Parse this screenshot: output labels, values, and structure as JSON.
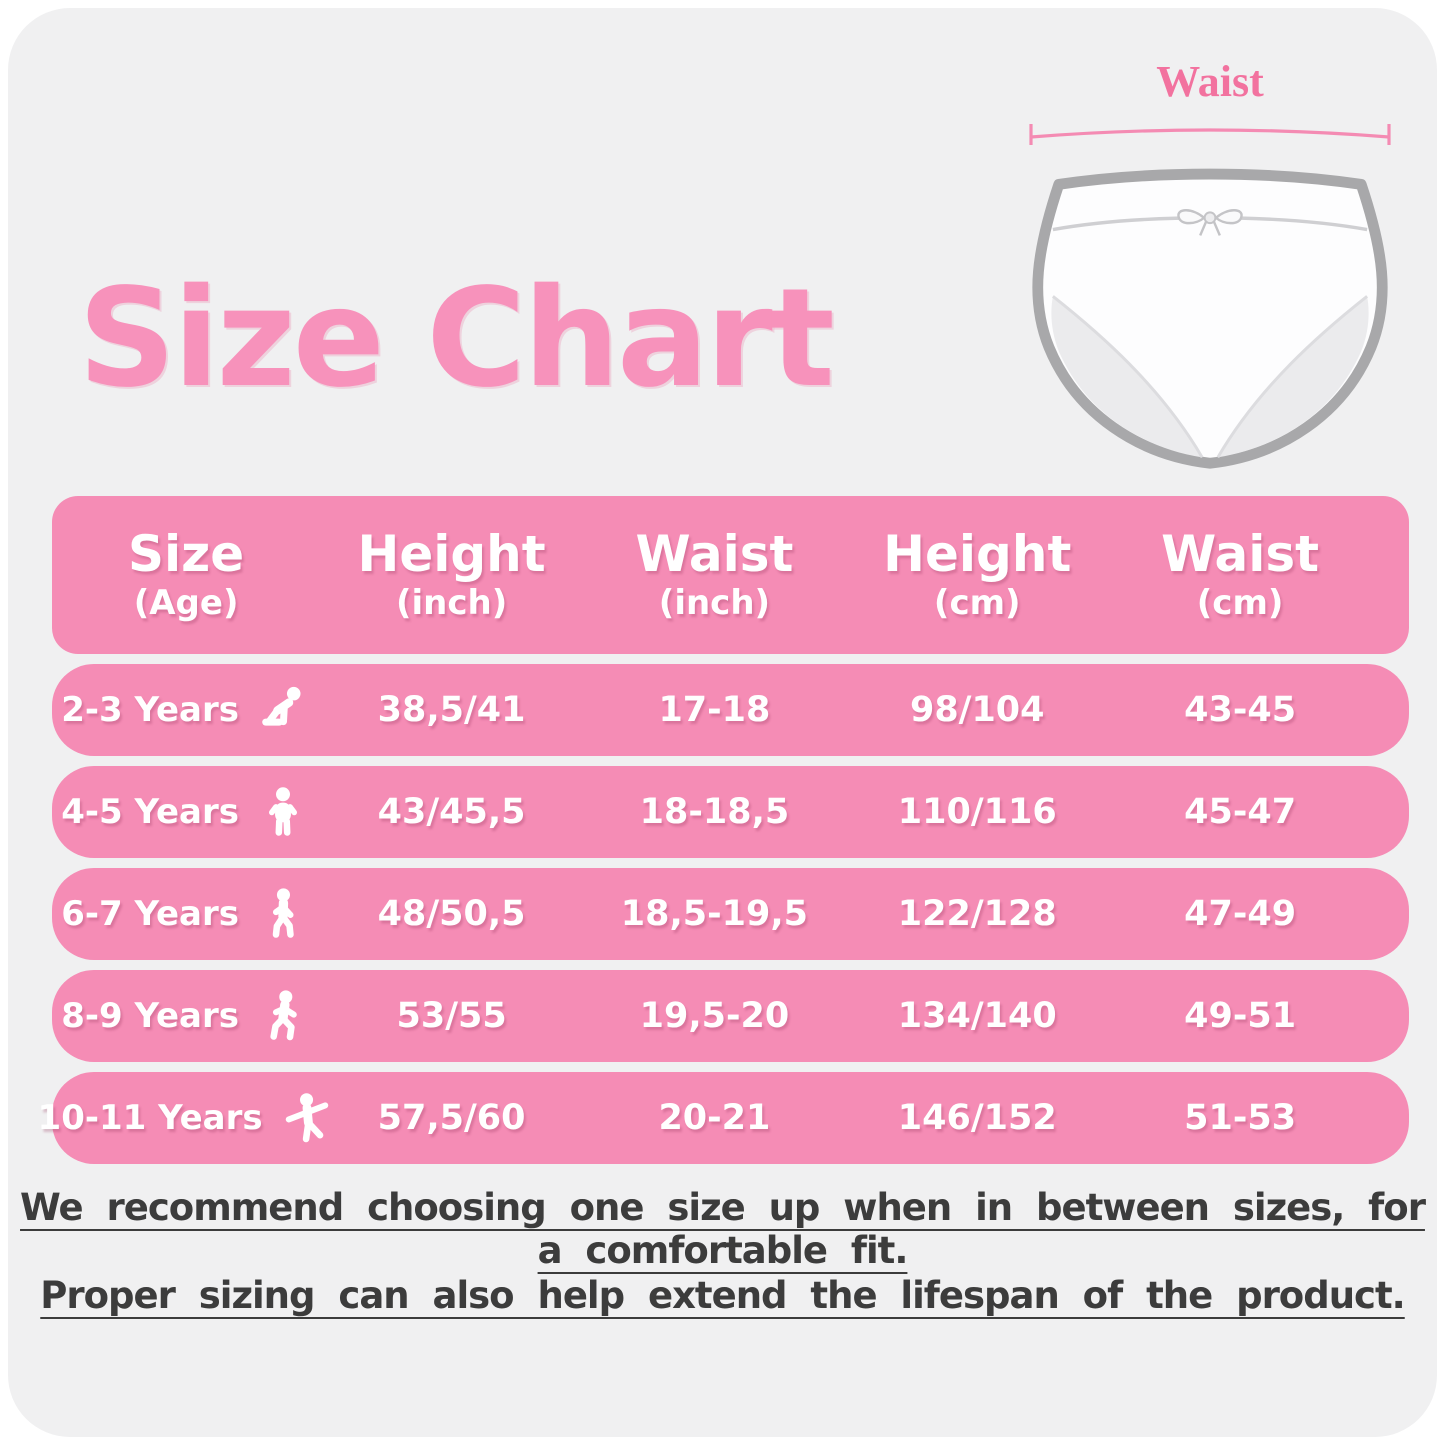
{
  "page": {
    "title": "Size Chart"
  },
  "diagram": {
    "label": "Waist",
    "illustration": "underwear-briefs-icon"
  },
  "colors": {
    "accent_pink": "#f58cb5",
    "title_pink": "#f792bb",
    "waist_label_pink": "#f2729f",
    "card_bg": "#f0f0f1",
    "note_text": "#3c3c3c",
    "briefs_outline": "#a8a8aa"
  },
  "table": {
    "headers": [
      {
        "label": "Size",
        "unit": "(Age)"
      },
      {
        "label": "Height",
        "unit": "(inch)"
      },
      {
        "label": "Waist",
        "unit": "(inch)"
      },
      {
        "label": "Height",
        "unit": "(cm)"
      },
      {
        "label": "Waist",
        "unit": "(cm)"
      }
    ],
    "rows": [
      {
        "age": "2-3 Years",
        "icon": "baby-crawling-icon",
        "height_inch": "38,5/41",
        "waist_inch": "17-18",
        "height_cm": "98/104",
        "waist_cm": "43-45"
      },
      {
        "age": "4-5 Years",
        "icon": "toddler-standing-icon",
        "height_inch": "43/45,5",
        "waist_inch": "18-18,5",
        "height_cm": "110/116",
        "waist_cm": "45-47"
      },
      {
        "age": "6-7 Years",
        "icon": "child-walking-icon",
        "height_inch": "48/50,5",
        "waist_inch": "18,5-19,5",
        "height_cm": "122/128",
        "waist_cm": "47-49"
      },
      {
        "age": "8-9 Years",
        "icon": "child-striding-icon",
        "height_inch": "53/55",
        "waist_inch": "19,5-20",
        "height_cm": "134/140",
        "waist_cm": "49-51"
      },
      {
        "age": "10-11 Years",
        "icon": "child-dancing-icon",
        "height_inch": "57,5/60",
        "waist_inch": "20-21",
        "height_cm": "146/152",
        "waist_cm": "51-53"
      }
    ]
  },
  "notes": [
    "We recommend choosing one size up when in between sizes, for a comfortable fit.",
    "Proper sizing can also help extend the lifespan of the product."
  ],
  "chart_data": {
    "type": "table",
    "title": "Size Chart",
    "columns": [
      "Size (Age)",
      "Height (inch)",
      "Waist (inch)",
      "Height (cm)",
      "Waist (cm)"
    ],
    "rows": [
      [
        "2-3 Years",
        "38,5/41",
        "17-18",
        "98/104",
        "43-45"
      ],
      [
        "4-5 Years",
        "43/45,5",
        "18-18,5",
        "110/116",
        "45-47"
      ],
      [
        "6-7 Years",
        "48/50,5",
        "18,5-19,5",
        "122/128",
        "47-49"
      ],
      [
        "8-9 Years",
        "53/55",
        "19,5-20",
        "134/140",
        "49-51"
      ],
      [
        "10-11 Years",
        "57,5/60",
        "20-21",
        "146/152",
        "51-53"
      ]
    ]
  }
}
